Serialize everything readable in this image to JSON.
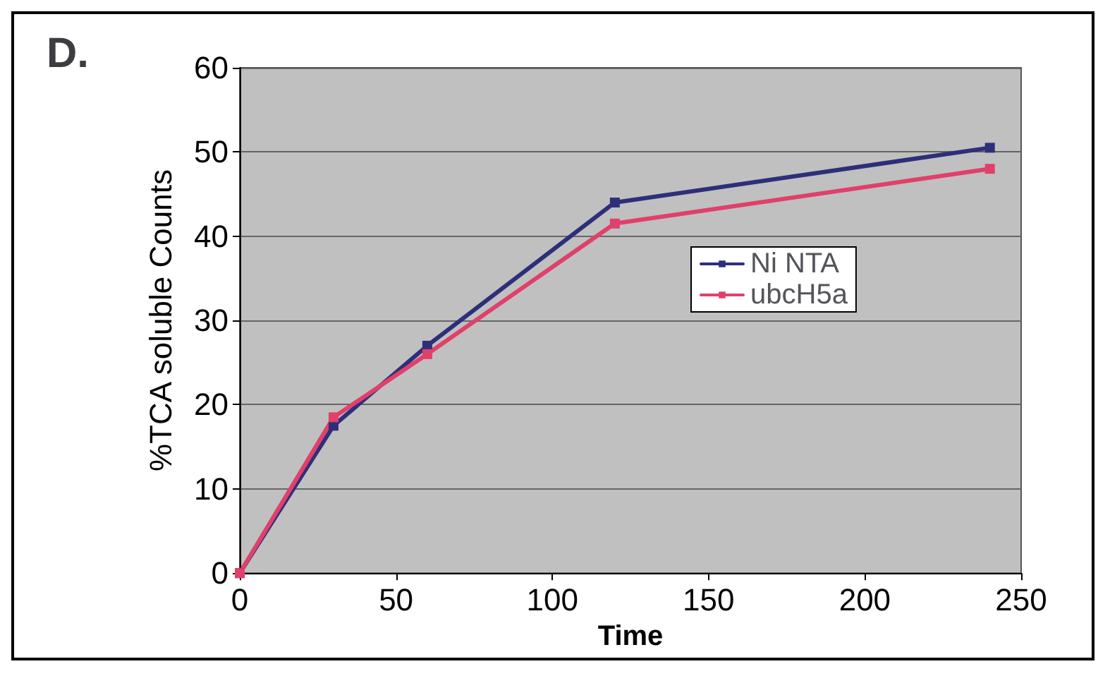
{
  "chart_data": {
    "type": "line",
    "title": "D.",
    "xlabel": "Time",
    "ylabel": "%TCA soluble Counts",
    "x": [
      0,
      30,
      60,
      120,
      240
    ],
    "series": [
      {
        "name": "Ni NTA",
        "color": "#2e2f7a",
        "values": [
          0,
          17.5,
          27,
          44,
          50.5
        ]
      },
      {
        "name": "ubcH5a",
        "color": "#e0406a",
        "values": [
          0,
          18.5,
          26,
          41.5,
          48
        ]
      }
    ],
    "xlim": [
      0,
      250
    ],
    "xticks": [
      0,
      50,
      100,
      150,
      200,
      250
    ],
    "ylim": [
      0,
      60
    ],
    "yticks": [
      0,
      10,
      20,
      30,
      40,
      50,
      60
    ],
    "grid": "y",
    "legend": "right",
    "marker": "square",
    "line_style": "solid"
  }
}
